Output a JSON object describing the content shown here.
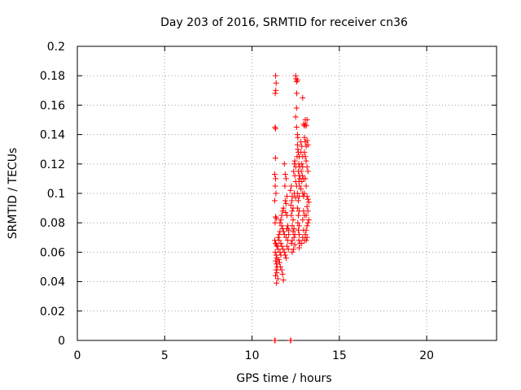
{
  "chart_data": {
    "type": "scatter",
    "title": "Day 203 of 2016, SRMTID for receiver cn36",
    "xlabel": "GPS time / hours",
    "ylabel": "SRMTID / TECUs",
    "xlim": [
      0,
      24
    ],
    "ylim": [
      0,
      0.2
    ],
    "xticks": [
      0,
      5,
      10,
      15,
      20
    ],
    "xtick_labels": [
      "0",
      "5",
      "10",
      "15",
      "20"
    ],
    "yticks": [
      0,
      0.02,
      0.04,
      0.06,
      0.08,
      0.1,
      0.12,
      0.14,
      0.16,
      0.18,
      0.2
    ],
    "ytick_labels": [
      "0",
      "0.02",
      "0.04",
      "0.06",
      "0.08",
      "0.1",
      "0.12",
      "0.14",
      "0.16",
      "0.18",
      "0.2"
    ],
    "grid": true,
    "marker": "plus",
    "color": "#ff0000",
    "series": [
      {
        "name": "SRMTID",
        "points": [
          [
            11.3,
            0.0
          ],
          [
            11.32,
            0.0
          ],
          [
            12.2,
            0.0
          ],
          [
            12.22,
            0.0
          ],
          [
            11.35,
            0.18
          ],
          [
            11.38,
            0.175
          ],
          [
            11.33,
            0.168
          ],
          [
            11.36,
            0.17
          ],
          [
            11.32,
            0.145
          ],
          [
            11.35,
            0.144
          ],
          [
            11.34,
            0.124
          ],
          [
            11.3,
            0.113
          ],
          [
            11.35,
            0.11
          ],
          [
            11.33,
            0.105
          ],
          [
            11.37,
            0.1
          ],
          [
            11.3,
            0.095
          ],
          [
            11.35,
            0.084
          ],
          [
            11.4,
            0.083
          ],
          [
            11.32,
            0.08
          ],
          [
            11.3,
            0.068
          ],
          [
            11.35,
            0.066
          ],
          [
            11.4,
            0.065
          ],
          [
            11.45,
            0.064
          ],
          [
            11.33,
            0.06
          ],
          [
            11.38,
            0.058
          ],
          [
            11.42,
            0.056
          ],
          [
            11.36,
            0.054
          ],
          [
            11.4,
            0.052
          ],
          [
            11.45,
            0.05
          ],
          [
            11.38,
            0.048
          ],
          [
            11.42,
            0.046
          ],
          [
            11.35,
            0.044
          ],
          [
            11.48,
            0.042
          ],
          [
            11.4,
            0.039
          ],
          [
            11.5,
            0.07
          ],
          [
            11.55,
            0.072
          ],
          [
            11.6,
            0.074
          ],
          [
            11.55,
            0.068
          ],
          [
            11.5,
            0.062
          ],
          [
            11.6,
            0.06
          ],
          [
            11.65,
            0.058
          ],
          [
            11.52,
            0.055
          ],
          [
            11.58,
            0.053
          ],
          [
            11.62,
            0.05
          ],
          [
            11.7,
            0.048
          ],
          [
            11.75,
            0.045
          ],
          [
            11.8,
            0.041
          ],
          [
            11.6,
            0.08
          ],
          [
            11.65,
            0.082
          ],
          [
            11.7,
            0.085
          ],
          [
            11.75,
            0.088
          ],
          [
            11.8,
            0.09
          ],
          [
            11.7,
            0.078
          ],
          [
            11.75,
            0.076
          ],
          [
            11.8,
            0.074
          ],
          [
            11.85,
            0.072
          ],
          [
            11.65,
            0.066
          ],
          [
            11.7,
            0.064
          ],
          [
            11.78,
            0.062
          ],
          [
            11.85,
            0.06
          ],
          [
            11.9,
            0.058
          ],
          [
            11.95,
            0.056
          ],
          [
            11.9,
            0.095
          ],
          [
            11.95,
            0.093
          ],
          [
            12.0,
            0.098
          ],
          [
            11.92,
            0.087
          ],
          [
            12.0,
            0.085
          ],
          [
            12.05,
            0.078
          ],
          [
            12.0,
            0.076
          ],
          [
            11.95,
            0.07
          ],
          [
            12.05,
            0.068
          ],
          [
            12.1,
            0.072
          ],
          [
            12.1,
            0.075
          ],
          [
            12.0,
            0.064
          ],
          [
            12.08,
            0.062
          ],
          [
            11.85,
            0.12
          ],
          [
            11.9,
            0.113
          ],
          [
            11.95,
            0.11
          ],
          [
            11.88,
            0.105
          ],
          [
            12.2,
            0.102
          ],
          [
            12.25,
            0.105
          ],
          [
            12.3,
            0.098
          ],
          [
            12.28,
            0.095
          ],
          [
            12.22,
            0.092
          ],
          [
            12.35,
            0.09
          ],
          [
            12.3,
            0.088
          ],
          [
            12.25,
            0.085
          ],
          [
            12.35,
            0.082
          ],
          [
            12.3,
            0.078
          ],
          [
            12.4,
            0.076
          ],
          [
            12.35,
            0.074
          ],
          [
            12.45,
            0.072
          ],
          [
            12.4,
            0.07
          ],
          [
            12.3,
            0.068
          ],
          [
            12.25,
            0.066
          ],
          [
            12.45,
            0.065
          ],
          [
            12.38,
            0.062
          ],
          [
            12.3,
            0.06
          ],
          [
            12.42,
            0.12
          ],
          [
            12.45,
            0.122
          ],
          [
            12.5,
            0.118
          ],
          [
            12.38,
            0.115
          ],
          [
            12.45,
            0.112
          ],
          [
            12.5,
            0.108
          ],
          [
            12.55,
            0.105
          ],
          [
            12.42,
            0.1
          ],
          [
            12.5,
            0.097
          ],
          [
            12.5,
            0.18
          ],
          [
            12.52,
            0.178
          ],
          [
            12.55,
            0.176
          ],
          [
            12.6,
            0.177
          ],
          [
            12.56,
            0.168
          ],
          [
            12.55,
            0.158
          ],
          [
            12.5,
            0.152
          ],
          [
            12.55,
            0.145
          ],
          [
            12.6,
            0.14
          ],
          [
            12.62,
            0.138
          ],
          [
            12.6,
            0.133
          ],
          [
            12.65,
            0.128
          ],
          [
            12.58,
            0.125
          ],
          [
            12.62,
            0.13
          ],
          [
            12.7,
            0.125
          ],
          [
            12.68,
            0.12
          ],
          [
            12.72,
            0.118
          ],
          [
            12.65,
            0.115
          ],
          [
            12.7,
            0.112
          ],
          [
            12.75,
            0.11
          ],
          [
            12.68,
            0.108
          ],
          [
            12.72,
            0.105
          ],
          [
            12.6,
            0.1
          ],
          [
            12.7,
            0.098
          ],
          [
            12.65,
            0.095
          ],
          [
            12.6,
            0.09
          ],
          [
            12.7,
            0.088
          ],
          [
            12.65,
            0.085
          ],
          [
            12.62,
            0.08
          ],
          [
            12.7,
            0.078
          ],
          [
            12.65,
            0.075
          ],
          [
            12.7,
            0.072
          ],
          [
            12.68,
            0.068
          ],
          [
            12.75,
            0.066
          ],
          [
            12.7,
            0.063
          ],
          [
            12.8,
            0.135
          ],
          [
            12.85,
            0.132
          ],
          [
            12.8,
            0.128
          ],
          [
            12.9,
            0.125
          ],
          [
            12.85,
            0.12
          ],
          [
            12.9,
            0.118
          ],
          [
            12.82,
            0.115
          ],
          [
            12.88,
            0.112
          ],
          [
            12.95,
            0.11
          ],
          [
            12.85,
            0.108
          ],
          [
            12.8,
            0.103
          ],
          [
            12.9,
            0.1
          ],
          [
            12.95,
            0.098
          ],
          [
            12.9,
            0.165
          ],
          [
            12.95,
            0.147
          ],
          [
            13.0,
            0.146
          ],
          [
            13.05,
            0.147
          ],
          [
            13.05,
            0.15
          ],
          [
            13.1,
            0.146
          ],
          [
            13.15,
            0.15
          ],
          [
            13.0,
            0.138
          ],
          [
            13.05,
            0.135
          ],
          [
            13.1,
            0.132
          ],
          [
            13.15,
            0.136
          ],
          [
            13.2,
            0.133
          ],
          [
            13.0,
            0.128
          ],
          [
            13.05,
            0.125
          ],
          [
            13.1,
            0.122
          ],
          [
            13.15,
            0.118
          ],
          [
            13.2,
            0.115
          ],
          [
            13.05,
            0.11
          ],
          [
            13.1,
            0.105
          ],
          [
            13.0,
            0.1
          ],
          [
            13.15,
            0.098
          ],
          [
            13.2,
            0.096
          ],
          [
            13.25,
            0.094
          ],
          [
            13.15,
            0.091
          ],
          [
            13.2,
            0.088
          ],
          [
            13.1,
            0.085
          ],
          [
            13.25,
            0.082
          ],
          [
            13.2,
            0.08
          ],
          [
            13.15,
            0.078
          ],
          [
            13.1,
            0.075
          ],
          [
            13.05,
            0.072
          ],
          [
            13.15,
            0.07
          ],
          [
            13.1,
            0.068
          ],
          [
            12.95,
            0.088
          ],
          [
            13.0,
            0.085
          ],
          [
            12.9,
            0.082
          ],
          [
            12.95,
            0.075
          ],
          [
            12.9,
            0.07
          ],
          [
            13.0,
            0.068
          ],
          [
            12.85,
            0.066
          ]
        ]
      }
    ]
  }
}
